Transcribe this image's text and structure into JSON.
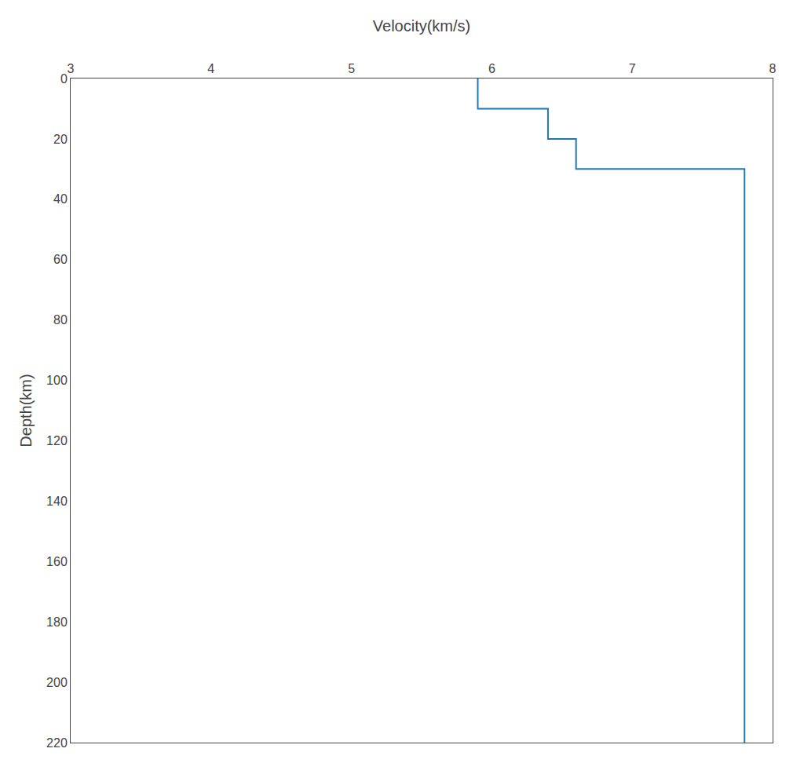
{
  "chart_data": {
    "type": "line",
    "xlabel": "Velocity(km/s)",
    "ylabel": "Depth(km)",
    "x": [
      5.9,
      5.9,
      6.4,
      6.4,
      6.6,
      6.6,
      7.8,
      7.8
    ],
    "values": [
      0,
      10,
      10,
      20,
      20,
      30,
      30,
      220
    ],
    "xlim": [
      3,
      8
    ],
    "ylim": [
      220,
      0
    ],
    "xticks": [
      3,
      4,
      5,
      6,
      7,
      8
    ],
    "yticks": [
      0,
      20,
      40,
      60,
      80,
      100,
      120,
      140,
      160,
      180,
      200,
      220
    ],
    "grid": false
  }
}
